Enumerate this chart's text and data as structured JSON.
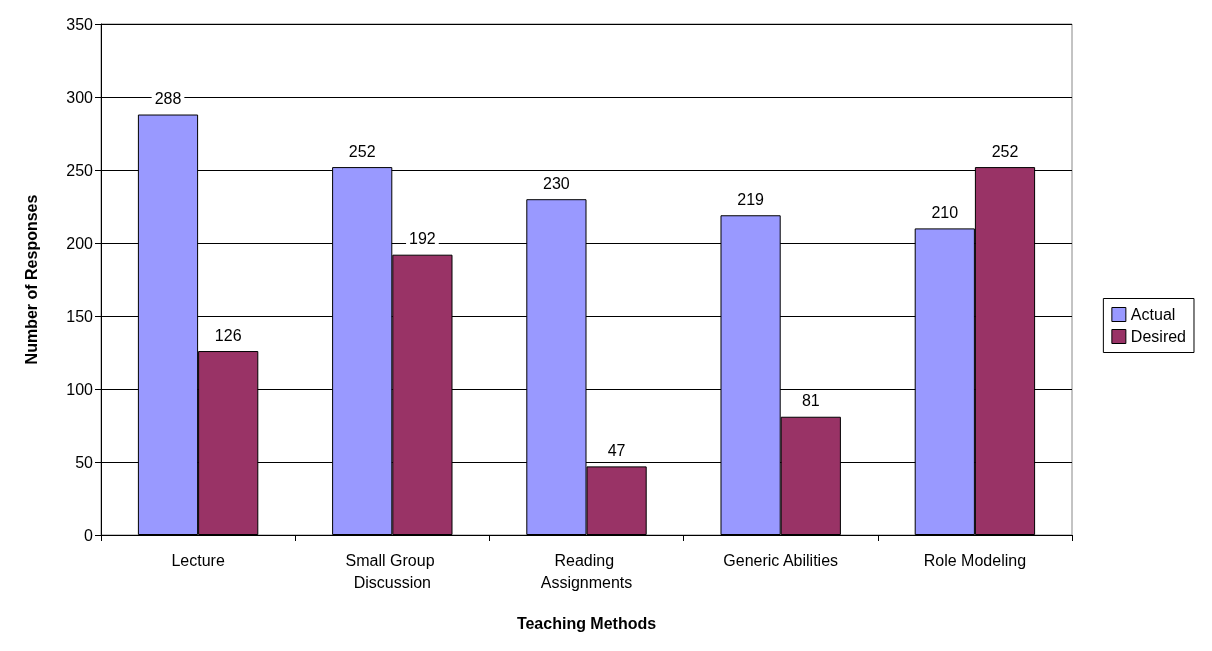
{
  "chart_data": {
    "type": "bar",
    "xlabel": "Teaching Methods",
    "ylabel": "Number of Responses",
    "categories": [
      "Lecture",
      "Small Group Discussion",
      "Reading Assignments",
      "Generic Abilities",
      "Role Modeling"
    ],
    "series": [
      {
        "name": "Actual",
        "color": "#9999ff",
        "values": [
          288,
          252,
          230,
          219,
          210
        ]
      },
      {
        "name": "Desired",
        "color": "#993366",
        "values": [
          126,
          192,
          47,
          81,
          252
        ]
      }
    ],
    "ylim": [
      0,
      350
    ],
    "yticks": [
      0,
      50,
      100,
      150,
      200,
      250,
      300,
      350
    ],
    "grid": "y",
    "legend": "right",
    "data_labels": true
  }
}
